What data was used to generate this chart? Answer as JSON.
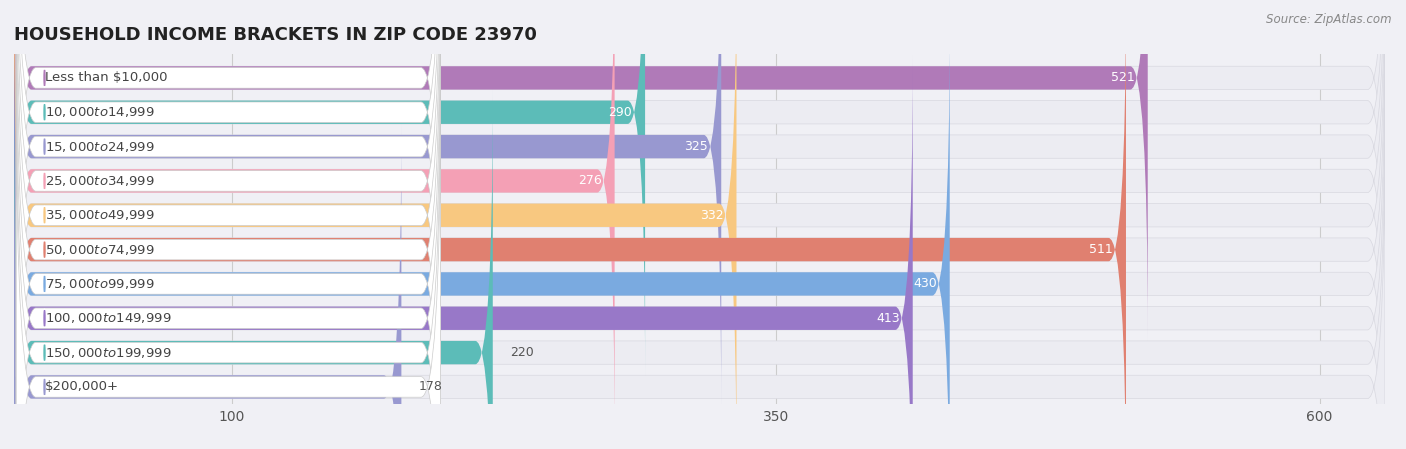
{
  "title": "HOUSEHOLD INCOME BRACKETS IN ZIP CODE 23970",
  "source": "Source: ZipAtlas.com",
  "categories": [
    "Less than $10,000",
    "$10,000 to $14,999",
    "$15,000 to $24,999",
    "$25,000 to $34,999",
    "$35,000 to $49,999",
    "$50,000 to $74,999",
    "$75,000 to $99,999",
    "$100,000 to $149,999",
    "$150,000 to $199,999",
    "$200,000+"
  ],
  "values": [
    521,
    290,
    325,
    276,
    332,
    511,
    430,
    413,
    220,
    178
  ],
  "bar_colors": [
    "#b07ab8",
    "#5cbcb8",
    "#9898d0",
    "#f4a0b5",
    "#f8c880",
    "#e08070",
    "#7aaae0",
    "#9878c8",
    "#5cbcb8",
    "#9898d0"
  ],
  "xlim_data": 630,
  "x_max_display": 600,
  "xticks": [
    100,
    350,
    600
  ],
  "background_color": "#f0f0f5",
  "bar_bg_color": "#e8e8ee",
  "row_bg_color": "#ebebf2",
  "title_fontsize": 13,
  "label_fontsize": 9.5,
  "value_fontsize": 9
}
